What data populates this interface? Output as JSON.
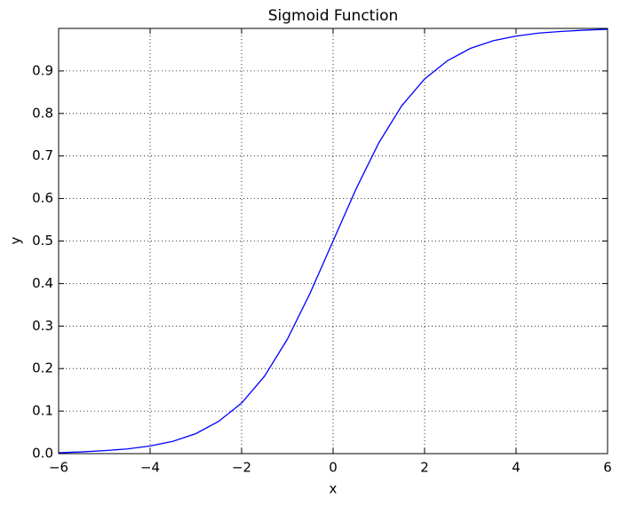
{
  "chart_data": {
    "type": "line",
    "title": "Sigmoid Function",
    "x_label": "x",
    "y_label": "y",
    "x": [
      -6,
      -5.5,
      -5,
      -4.5,
      -4,
      -3.5,
      -3,
      -2.5,
      -2,
      -1.5,
      -1,
      -0.5,
      0,
      0.5,
      1,
      1.5,
      2,
      2.5,
      3,
      3.5,
      4,
      4.5,
      5,
      5.5,
      6
    ],
    "series": [
      {
        "color": "#0000ff",
        "values": [
          0.002,
          0.004,
          0.007,
          0.011,
          0.018,
          0.029,
          0.047,
          0.076,
          0.119,
          0.182,
          0.269,
          0.378,
          0.5,
          0.622,
          0.731,
          0.818,
          0.881,
          0.924,
          0.953,
          0.971,
          0.982,
          0.989,
          0.993,
          0.996,
          0.998
        ]
      }
    ],
    "xlim": [
      -6,
      6
    ],
    "xticks": [
      {
        "value": -6,
        "label": "−6"
      },
      {
        "value": -4,
        "label": "−4"
      },
      {
        "value": -2,
        "label": "−2"
      },
      0,
      2,
      4,
      6
    ],
    "ylim": [
      0,
      1
    ],
    "yticks": [
      {
        "value": 0,
        "label": "0.0"
      },
      0.1,
      0.2,
      0.3,
      0.4,
      0.5,
      0.6,
      0.7,
      0.8,
      0.9
    ],
    "grid": true
  }
}
